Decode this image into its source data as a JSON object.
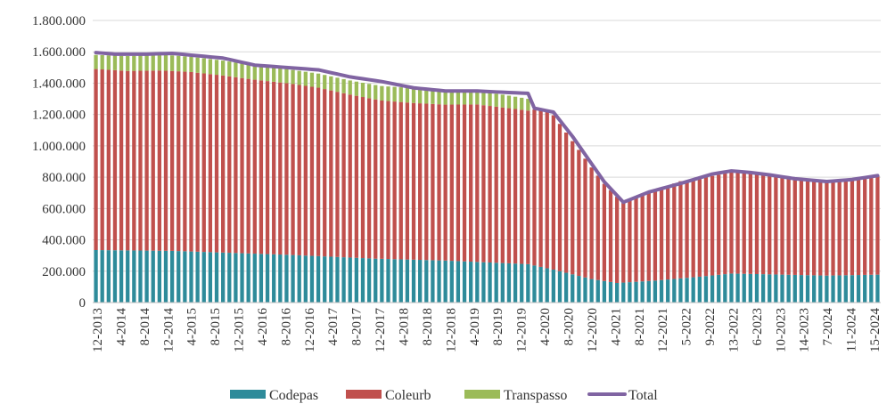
{
  "chart_data": {
    "type": "bar",
    "stacked": true,
    "title": "",
    "xlabel": "",
    "ylabel": "",
    "ylim": [
      0,
      1800000
    ],
    "yticks": [
      0,
      200000,
      400000,
      600000,
      800000,
      1000000,
      1200000,
      1400000,
      1600000,
      1800000
    ],
    "ytick_labels": [
      "0",
      "200.000",
      "400.000",
      "600.000",
      "800.000",
      "1.000.000",
      "1.200.000",
      "1.400.000",
      "1.600.000",
      "1.800.000"
    ],
    "grid": true,
    "legend_position": "bottom",
    "bar_count": 124,
    "xtick_labels": [
      "12-2013",
      "4-2014",
      "8-2014",
      "12-2014",
      "4-2015",
      "8-2015",
      "12-2015",
      "4-2016",
      "8-2016",
      "12-2016",
      "4-2017",
      "8-2017",
      "12-2017",
      "4-2018",
      "8-2018",
      "12-2018",
      "4-2019",
      "8-2019",
      "12-2019",
      "4-2020",
      "8-2020",
      "12-2020",
      "4-2021",
      "8-2021",
      "12-2021",
      "5-2022",
      "9-2022",
      "13-2022",
      "6-2023",
      "10-2023",
      "14-2023",
      "7-2024",
      "11-2024",
      "15-2024"
    ],
    "series": [
      {
        "name": "Codepas",
        "color": "#2E8B9A",
        "anchors": [
          [
            0,
            335000
          ],
          [
            12,
            330000
          ],
          [
            30,
            305000
          ],
          [
            44,
            280000
          ],
          [
            55,
            268000
          ],
          [
            68,
            245000
          ],
          [
            72,
            210000
          ],
          [
            78,
            150000
          ],
          [
            82,
            125000
          ],
          [
            88,
            140000
          ],
          [
            95,
            165000
          ],
          [
            100,
            185000
          ],
          [
            106,
            180000
          ],
          [
            115,
            172000
          ],
          [
            123,
            178000
          ]
        ]
      },
      {
        "name": "Coleurb",
        "color": "#C0504D",
        "anchors": [
          [
            0,
            1155000
          ],
          [
            5,
            1145000
          ],
          [
            10,
            1150000
          ],
          [
            15,
            1145000
          ],
          [
            20,
            1130000
          ],
          [
            25,
            1110000
          ],
          [
            30,
            1095000
          ],
          [
            35,
            1075000
          ],
          [
            40,
            1040000
          ],
          [
            45,
            1010000
          ],
          [
            50,
            1000000
          ],
          [
            55,
            995000
          ],
          [
            60,
            1005000
          ],
          [
            65,
            990000
          ],
          [
            68,
            980000
          ],
          [
            70,
            1010000
          ],
          [
            72,
            985000
          ],
          [
            75,
            850000
          ],
          [
            80,
            620000
          ],
          [
            83,
            515000
          ],
          [
            87,
            565000
          ],
          [
            92,
            620000
          ],
          [
            97,
            635000
          ],
          [
            102,
            655000
          ],
          [
            106,
            630000
          ],
          [
            110,
            618000
          ],
          [
            115,
            600000
          ],
          [
            119,
            612000
          ],
          [
            123,
            632000
          ]
        ]
      },
      {
        "name": "Transpasso",
        "color": "#9BBB59",
        "anchors": [
          [
            0,
            90000
          ],
          [
            10,
            100000
          ],
          [
            20,
            95000
          ],
          [
            30,
            90000
          ],
          [
            40,
            90000
          ],
          [
            50,
            95000
          ],
          [
            58,
            90000
          ],
          [
            65,
            80000
          ],
          [
            68,
            75000
          ],
          [
            69,
            0
          ],
          [
            123,
            0
          ]
        ]
      }
    ],
    "total": {
      "name": "Total",
      "color": "#8064A2",
      "anchors": [
        [
          0,
          1595000
        ],
        [
          3,
          1585000
        ],
        [
          8,
          1585000
        ],
        [
          12,
          1590000
        ],
        [
          16,
          1575000
        ],
        [
          20,
          1560000
        ],
        [
          25,
          1515000
        ],
        [
          30,
          1500000
        ],
        [
          35,
          1485000
        ],
        [
          40,
          1440000
        ],
        [
          45,
          1410000
        ],
        [
          50,
          1370000
        ],
        [
          55,
          1350000
        ],
        [
          60,
          1350000
        ],
        [
          65,
          1340000
        ],
        [
          68,
          1335000
        ],
        [
          69,
          1240000
        ],
        [
          72,
          1215000
        ],
        [
          75,
          1060000
        ],
        [
          80,
          770000
        ],
        [
          83,
          640000
        ],
        [
          87,
          705000
        ],
        [
          92,
          760000
        ],
        [
          97,
          820000
        ],
        [
          100,
          840000
        ],
        [
          103,
          830000
        ],
        [
          106,
          815000
        ],
        [
          110,
          790000
        ],
        [
          115,
          772000
        ],
        [
          119,
          785000
        ],
        [
          123,
          810000
        ]
      ]
    }
  },
  "legend": [
    {
      "label": "Codepas",
      "kind": "box",
      "color": "#2E8B9A"
    },
    {
      "label": "Coleurb",
      "kind": "box",
      "color": "#C0504D"
    },
    {
      "label": "Transpasso",
      "kind": "box",
      "color": "#9BBB59"
    },
    {
      "label": "Total",
      "kind": "line",
      "color": "#8064A2"
    }
  ]
}
